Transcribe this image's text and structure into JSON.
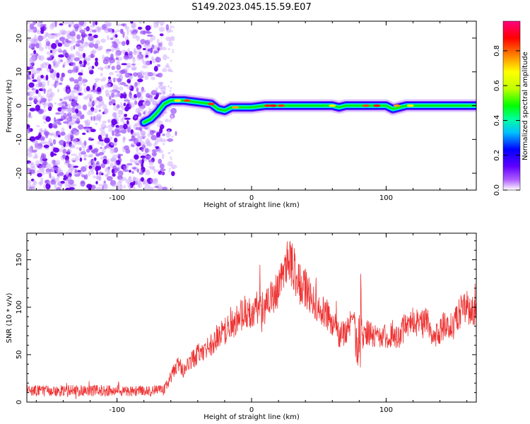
{
  "title": "S149.2023.045.15.59.E07",
  "chart_data": [
    {
      "type": "heatmap",
      "xlabel": "Height of straight line (km)",
      "ylabel": "Frequency (Hz)",
      "xlim": [
        -167,
        167
      ],
      "ylim": [
        -25,
        25
      ],
      "xticks": [
        -100,
        0,
        100
      ],
      "yticks": [
        -20,
        -10,
        0,
        10,
        20
      ],
      "colorbar": {
        "label": "Normalized spectral amplitude",
        "range": [
          0,
          0.97
        ],
        "ticks": [
          0.0,
          0.2,
          0.4,
          0.6,
          0.8
        ],
        "colormap": [
          "#ffffff",
          "#b060ff",
          "#6000ff",
          "#0000ff",
          "#00c0ff",
          "#00ffa0",
          "#00ff00",
          "#c0ff00",
          "#ffff00",
          "#ff8000",
          "#ff0000",
          "#ff0080"
        ]
      },
      "noise_region_x": [
        -167,
        -62
      ],
      "ridge": [
        [
          -80,
          -5
        ],
        [
          -75,
          -4
        ],
        [
          -70,
          -2
        ],
        [
          -65,
          0.5
        ],
        [
          -60,
          1.5
        ],
        [
          -50,
          1.5
        ],
        [
          -40,
          1
        ],
        [
          -30,
          0.5
        ],
        [
          -25,
          -1
        ],
        [
          -20,
          -1.5
        ],
        [
          -15,
          -0.5
        ],
        [
          -10,
          -0.5
        ],
        [
          0,
          -0.5
        ],
        [
          10,
          0
        ],
        [
          20,
          0
        ],
        [
          40,
          0
        ],
        [
          60,
          0
        ],
        [
          65,
          -0.5
        ],
        [
          70,
          0
        ],
        [
          75,
          0
        ],
        [
          80,
          0
        ],
        [
          100,
          0
        ],
        [
          105,
          -1
        ],
        [
          110,
          -0.5
        ],
        [
          115,
          0
        ],
        [
          130,
          0
        ],
        [
          150,
          0
        ],
        [
          167,
          0
        ]
      ]
    },
    {
      "type": "line",
      "xlabel": "Height of straight line (km)",
      "ylabel": "SNR (10 * v/v)",
      "xlim": [
        -167,
        167
      ],
      "ylim": [
        0,
        178
      ],
      "xticks": [
        -100,
        0,
        100
      ],
      "yticks": [
        0,
        50,
        100,
        150
      ],
      "series": [
        {
          "color": "#ee3333",
          "x": [
            -167,
            -150,
            -130,
            -110,
            -90,
            -75,
            -65,
            -60,
            -55,
            -50,
            -45,
            -40,
            -35,
            -30,
            -25,
            -20,
            -15,
            -10,
            -5,
            0,
            5,
            10,
            15,
            20,
            25,
            28,
            32,
            35,
            40,
            45,
            50,
            55,
            60,
            65,
            70,
            75,
            78,
            80,
            82,
            85,
            90,
            95,
            100,
            105,
            110,
            115,
            120,
            125,
            130,
            135,
            140,
            145,
            150,
            155,
            160,
            165,
            167
          ],
          "y": [
            12,
            12,
            12,
            12,
            12,
            12,
            13,
            25,
            40,
            32,
            42,
            52,
            55,
            60,
            70,
            75,
            80,
            88,
            95,
            95,
            100,
            100,
            110,
            120,
            145,
            152,
            138,
            125,
            120,
            110,
            100,
            95,
            85,
            70,
            75,
            85,
            80,
            95,
            60,
            75,
            72,
            70,
            70,
            70,
            70,
            80,
            90,
            80,
            85,
            70,
            75,
            85,
            80,
            95,
            100,
            98,
            90
          ]
        }
      ]
    }
  ]
}
